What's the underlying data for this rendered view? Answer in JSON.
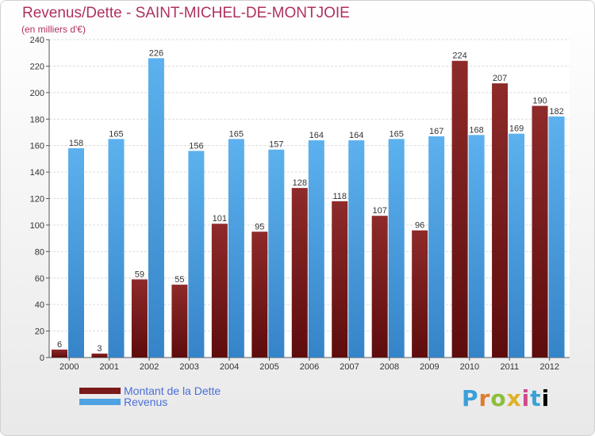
{
  "header": {
    "title": "Revenus/Dette - SAINT-MICHEL-DE-MONTJOIE",
    "subtitle": "(en milliers d'€)"
  },
  "brand": {
    "text": "Proxiti"
  },
  "colors": {
    "debt": "#7a1a1a",
    "revenue": "#4fa3e3",
    "title": "#b03060",
    "legend_text": "#4a6fd8"
  },
  "chart_data": {
    "type": "bar",
    "title": "Revenus/Dette - SAINT-MICHEL-DE-MONTJOIE",
    "subtitle": "(en milliers d'€)",
    "categories": [
      "2000",
      "2001",
      "2002",
      "2003",
      "2004",
      "2005",
      "2006",
      "2007",
      "2008",
      "2009",
      "2010",
      "2011",
      "2012"
    ],
    "series": [
      {
        "name": "Montant de la Dette",
        "values": [
          6,
          3,
          59,
          55,
          101,
          95,
          128,
          118,
          107,
          96,
          224,
          207,
          190
        ]
      },
      {
        "name": "Revenus",
        "values": [
          158,
          165,
          226,
          156,
          165,
          157,
          164,
          164,
          165,
          167,
          168,
          169,
          182
        ]
      }
    ],
    "ylim": [
      0,
      240
    ],
    "yticks": [
      0,
      20,
      40,
      60,
      80,
      100,
      120,
      140,
      160,
      180,
      200,
      220,
      240
    ],
    "grid": true,
    "legend": "bottom-left"
  }
}
